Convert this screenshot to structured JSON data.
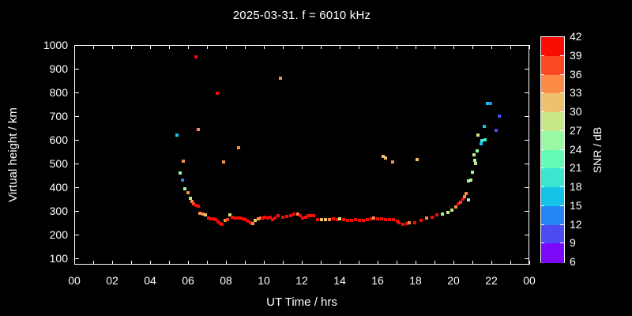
{
  "title": "2025-03-31. f = 6010 kHz",
  "background_color": "#000000",
  "frame_color": "#ffffff",
  "text_color": "#ffffff",
  "x_axis": {
    "label": "UT Time / hrs",
    "tick_labels": [
      "00",
      "02",
      "04",
      "06",
      "08",
      "10",
      "12",
      "14",
      "16",
      "18",
      "20",
      "22",
      "00"
    ],
    "tick_hours": [
      0,
      2,
      4,
      6,
      8,
      10,
      12,
      14,
      16,
      18,
      20,
      22,
      24
    ],
    "minor_tick_step_hours": 1
  },
  "y_axis": {
    "label": "Virtual height / km",
    "tick_labels": [
      "1000",
      "900",
      "800",
      "700",
      "600",
      "500",
      "400",
      "300",
      "200",
      "100"
    ],
    "tick_values": [
      1000,
      900,
      800,
      700,
      600,
      500,
      400,
      300,
      200,
      100
    ]
  },
  "colorbar": {
    "label": "SNR / dB",
    "tick_labels": [
      "42",
      "39",
      "36",
      "33",
      "30",
      "27",
      "24",
      "21",
      "18",
      "15",
      "12",
      "9",
      "6"
    ],
    "tick_values": [
      42,
      39,
      36,
      33,
      30,
      27,
      24,
      21,
      18,
      15,
      12,
      9,
      6
    ],
    "segment_colors_top_to_bottom": [
      "#fa0b04",
      "#fb4823",
      "#fc8b45",
      "#f0c16c",
      "#c8e887",
      "#98f8a4",
      "#66fab9",
      "#3ae6cf",
      "#14c3e7",
      "#2486f2",
      "#4b4bf1",
      "#7b08f8"
    ]
  },
  "chart_data": {
    "type": "scatter",
    "title": "2025-03-31. f = 6010 kHz",
    "xlabel": "UT Time / hrs",
    "ylabel": "Virtual height / km",
    "zlabel": "SNR / dB",
    "xlim_hours": [
      0,
      24
    ],
    "ylim_km": [
      72,
      1000
    ],
    "snr_scale_db": [
      6,
      42
    ],
    "grid": false,
    "marker": "square",
    "points_h_km_snr": [
      [
        5.42,
        621,
        16
      ],
      [
        5.59,
        458,
        25
      ],
      [
        5.7,
        430,
        13
      ],
      [
        5.77,
        510,
        34
      ],
      [
        5.84,
        392,
        25
      ],
      [
        6.0,
        376,
        34
      ],
      [
        6.12,
        353,
        28
      ],
      [
        6.2,
        338,
        34
      ],
      [
        6.3,
        330,
        37
      ],
      [
        6.43,
        322,
        40
      ],
      [
        6.55,
        320,
        40
      ],
      [
        6.64,
        288,
        34
      ],
      [
        6.78,
        285,
        34
      ],
      [
        6.9,
        284,
        31
      ],
      [
        7.1,
        269,
        40
      ],
      [
        7.2,
        266,
        40
      ],
      [
        7.32,
        265,
        40
      ],
      [
        7.45,
        263,
        40
      ],
      [
        7.6,
        252,
        40
      ],
      [
        7.72,
        247,
        40
      ],
      [
        7.8,
        243,
        40
      ],
      [
        7.96,
        260,
        34
      ],
      [
        8.07,
        262,
        37
      ],
      [
        8.21,
        281,
        28
      ],
      [
        8.33,
        273,
        40
      ],
      [
        8.45,
        270,
        40
      ],
      [
        8.6,
        268,
        40
      ],
      [
        8.75,
        268,
        40
      ],
      [
        8.9,
        267,
        40
      ],
      [
        9.05,
        261,
        40
      ],
      [
        9.17,
        256,
        40
      ],
      [
        9.28,
        250,
        40
      ],
      [
        9.4,
        245,
        34
      ],
      [
        9.56,
        258,
        31
      ],
      [
        9.7,
        266,
        34
      ],
      [
        9.82,
        269,
        34
      ],
      [
        9.93,
        270,
        40
      ],
      [
        10.05,
        272,
        40
      ],
      [
        10.2,
        269,
        40
      ],
      [
        10.33,
        272,
        40
      ],
      [
        10.47,
        264,
        40
      ],
      [
        10.6,
        269,
        40
      ],
      [
        10.74,
        278,
        40
      ],
      [
        11.01,
        272,
        40
      ],
      [
        11.22,
        275,
        40
      ],
      [
        11.42,
        280,
        40
      ],
      [
        11.57,
        287,
        40
      ],
      [
        11.78,
        285,
        34
      ],
      [
        11.9,
        280,
        40
      ],
      [
        12.06,
        269,
        40
      ],
      [
        12.2,
        273,
        40
      ],
      [
        12.33,
        278,
        40
      ],
      [
        12.48,
        278,
        40
      ],
      [
        12.61,
        278,
        40
      ],
      [
        12.82,
        263,
        40
      ],
      [
        13.03,
        263,
        31
      ],
      [
        13.24,
        262,
        31
      ],
      [
        13.44,
        262,
        34
      ],
      [
        13.65,
        265,
        40
      ],
      [
        13.86,
        263,
        40
      ],
      [
        14.0,
        267,
        28
      ],
      [
        14.21,
        262,
        40
      ],
      [
        14.42,
        258,
        40
      ],
      [
        14.63,
        260,
        40
      ],
      [
        14.83,
        261,
        40
      ],
      [
        15.04,
        259,
        40
      ],
      [
        15.25,
        258,
        40
      ],
      [
        15.46,
        261,
        40
      ],
      [
        15.67,
        265,
        40
      ],
      [
        15.81,
        269,
        34
      ],
      [
        16.01,
        267,
        40
      ],
      [
        16.22,
        265,
        40
      ],
      [
        16.43,
        263,
        40
      ],
      [
        16.64,
        261,
        40
      ],
      [
        16.85,
        261,
        40
      ],
      [
        17.06,
        256,
        40
      ],
      [
        17.13,
        250,
        40
      ],
      [
        17.33,
        241,
        40
      ],
      [
        17.54,
        245,
        40
      ],
      [
        17.68,
        248,
        34
      ],
      [
        17.96,
        250,
        40
      ],
      [
        18.31,
        259,
        40
      ],
      [
        18.58,
        270,
        34
      ],
      [
        18.86,
        272,
        40
      ],
      [
        19.14,
        281,
        40
      ],
      [
        19.42,
        286,
        25
      ],
      [
        19.7,
        292,
        28
      ],
      [
        19.9,
        303,
        28
      ],
      [
        20.11,
        315,
        34
      ],
      [
        20.25,
        328,
        40
      ],
      [
        20.39,
        337,
        37
      ],
      [
        20.5,
        350,
        40
      ],
      [
        20.6,
        359,
        34
      ],
      [
        20.68,
        372,
        34
      ],
      [
        20.78,
        347,
        25
      ],
      [
        20.79,
        426,
        25
      ],
      [
        20.91,
        430,
        28
      ],
      [
        21.0,
        462,
        25
      ],
      [
        21.07,
        535,
        28
      ],
      [
        21.14,
        514,
        25
      ],
      [
        21.17,
        500,
        28
      ],
      [
        21.25,
        552,
        25
      ],
      [
        21.31,
        618,
        28
      ],
      [
        21.45,
        583,
        16
      ],
      [
        21.5,
        597,
        19
      ],
      [
        21.63,
        655,
        16
      ],
      [
        21.66,
        598,
        19
      ],
      [
        21.8,
        753,
        16
      ],
      [
        21.95,
        753,
        13
      ],
      [
        22.23,
        640,
        10
      ],
      [
        22.43,
        698,
        10
      ],
      [
        6.43,
        950,
        40
      ],
      [
        6.54,
        643,
        34
      ],
      [
        7.53,
        795,
        40
      ],
      [
        7.87,
        506,
        34
      ],
      [
        8.66,
        565,
        34
      ],
      [
        10.88,
        861,
        34
      ],
      [
        16.3,
        531,
        31
      ],
      [
        16.42,
        524,
        31
      ],
      [
        16.8,
        506,
        34
      ],
      [
        18.07,
        516,
        31
      ]
    ]
  }
}
